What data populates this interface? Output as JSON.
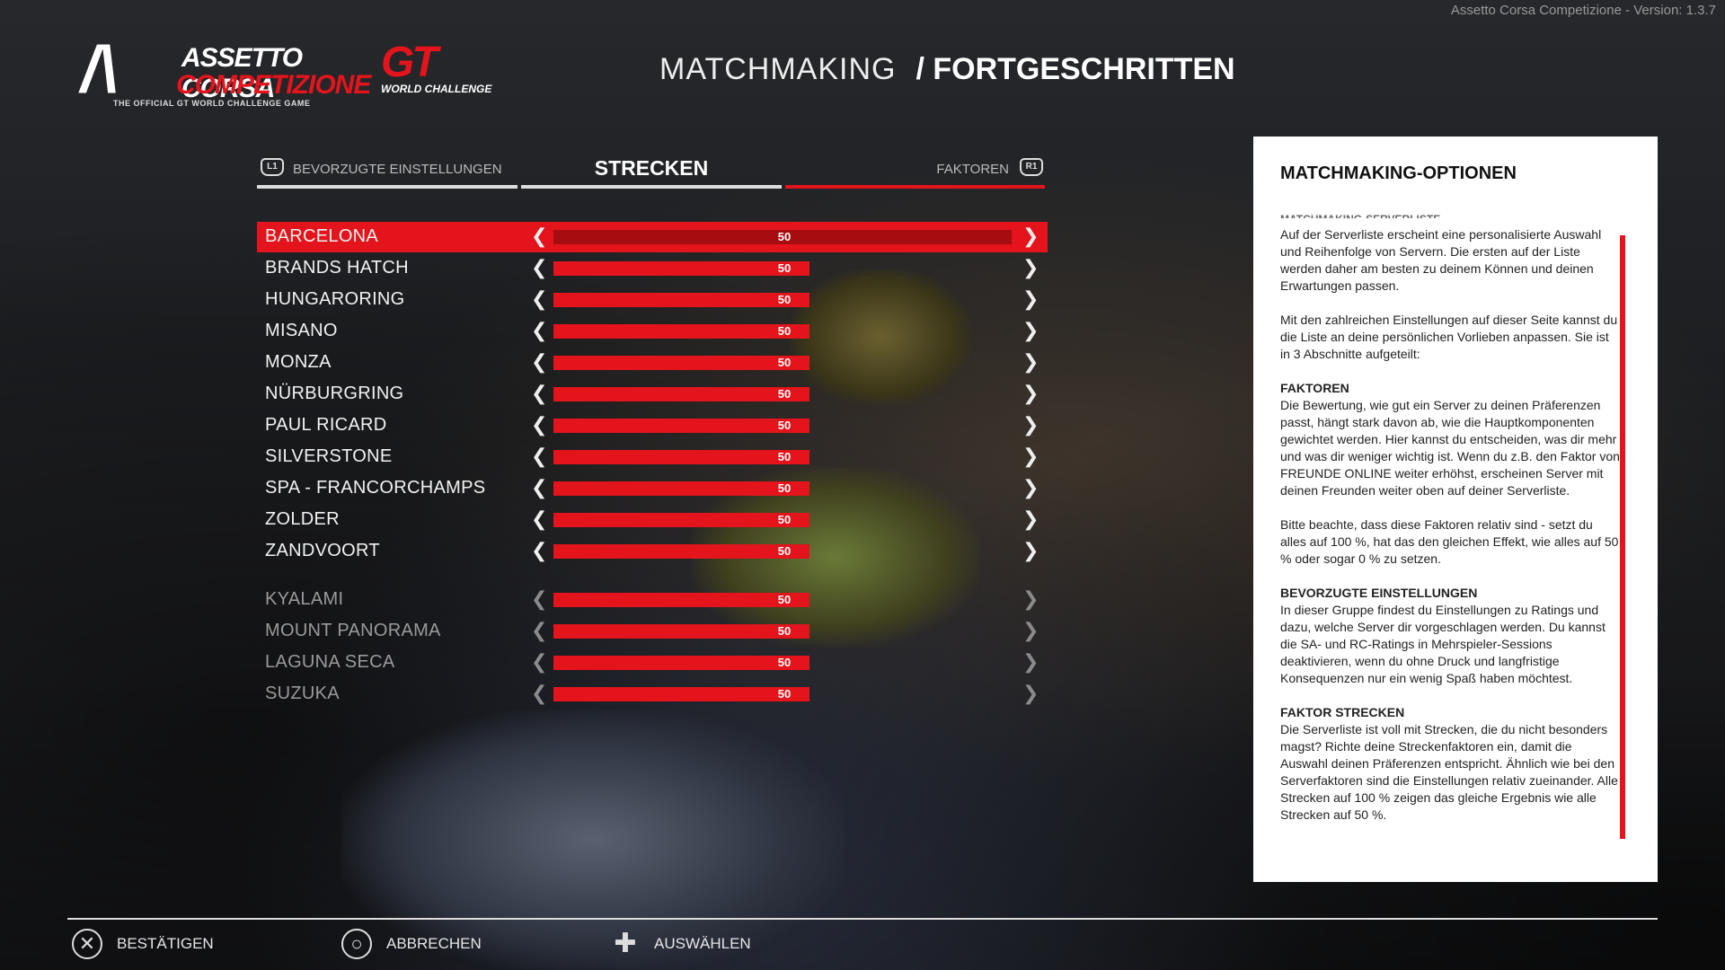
{
  "version": "Assetto Corsa Competizione - Version: 1.3.7",
  "logos": {
    "acc_line1": "ASSETTO CORSA",
    "acc_line2": "COMPETIZIONE",
    "acc_tagline": "THE OFFICIAL GT WORLD CHALLENGE GAME",
    "gt_mark": "GT",
    "gt_sub": "WORLD CHALLENGE"
  },
  "header": {
    "section": "MATCHMAKING",
    "page": "/ FORTGESCHRITTEN"
  },
  "tabs": {
    "left": {
      "badge": "L1",
      "label": "BEVORZUGTE EINSTELLUNGEN"
    },
    "center": {
      "label": "STRECKEN"
    },
    "right": {
      "badge": "R1",
      "label": "FAKTOREN"
    }
  },
  "tracks": [
    {
      "name": "BARCELONA",
      "value": 50,
      "selected": true,
      "dim": false
    },
    {
      "name": "BRANDS HATCH",
      "value": 50,
      "selected": false,
      "dim": false
    },
    {
      "name": "HUNGARORING",
      "value": 50,
      "selected": false,
      "dim": false
    },
    {
      "name": "MISANO",
      "value": 50,
      "selected": false,
      "dim": false
    },
    {
      "name": "MONZA",
      "value": 50,
      "selected": false,
      "dim": false
    },
    {
      "name": "NÜRBURGRING",
      "value": 50,
      "selected": false,
      "dim": false
    },
    {
      "name": "PAUL RICARD",
      "value": 50,
      "selected": false,
      "dim": false
    },
    {
      "name": "SILVERSTONE",
      "value": 50,
      "selected": false,
      "dim": false
    },
    {
      "name": "SPA - FRANCORCHAMPS",
      "value": 50,
      "selected": false,
      "dim": false
    },
    {
      "name": "ZOLDER",
      "value": 50,
      "selected": false,
      "dim": false
    },
    {
      "name": "ZANDVOORT",
      "value": 50,
      "selected": false,
      "dim": false
    },
    {
      "name": "KYALAMI",
      "value": 50,
      "selected": false,
      "dim": true
    },
    {
      "name": "MOUNT PANORAMA",
      "value": 50,
      "selected": false,
      "dim": true
    },
    {
      "name": "LAGUNA SECA",
      "value": 50,
      "selected": false,
      "dim": true
    },
    {
      "name": "SUZUKA",
      "value": 50,
      "selected": false,
      "dim": true
    }
  ],
  "info": {
    "title": "MATCHMAKING-OPTIONEN",
    "cut_heading": "MATCHMAKING-SERVERLISTE",
    "p1": "Auf der Serverliste erscheint eine personalisierte Auswahl und Reihenfolge von Servern. Die ersten auf der Liste werden daher am besten zu deinem Können und deinen Erwartungen passen.",
    "p2": "Mit den zahlreichen Einstellungen auf dieser Seite kannst du die Liste an deine persönlichen Vorlieben anpassen. Sie ist in 3 Abschnitte aufgeteilt:",
    "h3": "FAKTOREN",
    "p3": "Die Bewertung, wie gut ein Server zu deinen Präferenzen passt, hängt stark davon ab, wie die Hauptkomponenten gewichtet werden. Hier kannst du entscheiden, was dir mehr und was dir weniger wichtig ist. Wenn du z.B. den Faktor von FREUNDE ONLINE weiter erhöhst, erscheinen Server mit deinen Freunden weiter oben auf deiner Serverliste.",
    "p4": "Bitte beachte, dass diese Faktoren relativ sind - setzt du alles auf 100 %, hat das den gleichen Effekt, wie alles auf 50 % oder sogar 0 % zu setzen.",
    "h5": "BEVORZUGTE EINSTELLUNGEN",
    "p5": "In dieser Gruppe findest du Einstellungen zu Ratings und dazu, welche Server dir vorgeschlagen werden. Du kannst die SA- und RC-Ratings in Mehrspieler-Sessions deaktivieren, wenn du ohne Druck und langfristige Konsequenzen nur ein wenig Spaß haben möchtest.",
    "h6": "FAKTOR STRECKEN",
    "p6": "Die Serverliste ist voll mit Strecken, die du nicht besonders magst? Richte deine Streckenfaktoren ein, damit die Auswahl deinen Präferenzen entspricht. Ähnlich wie bei den Serverfaktoren sind die Einstellungen relativ zueinander. Alle Strecken auf 100 % zeigen das gleiche Ergebnis wie alle Strecken auf 50 %."
  },
  "footer": {
    "confirm": "BESTÄTIGEN",
    "cancel": "ABBRECHEN",
    "select": "AUSWÄHLEN"
  },
  "colors": {
    "accent": "#e3141b",
    "accent_dark": "#a50d11"
  }
}
